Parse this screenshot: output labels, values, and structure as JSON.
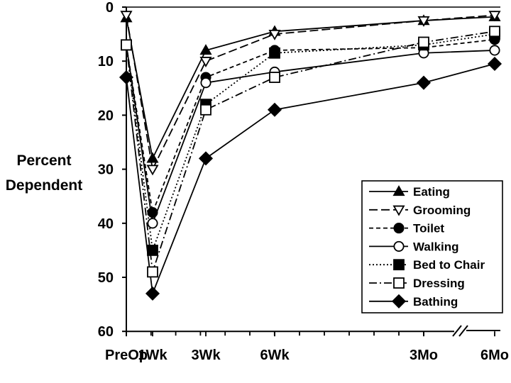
{
  "chart_data": {
    "type": "line",
    "title": "",
    "xlabel": "",
    "ylabel": [
      "Percent",
      "Dependent"
    ],
    "ylim": [
      0,
      60
    ],
    "y_inverted": true,
    "yticks": [
      0,
      10,
      20,
      30,
      40,
      50,
      60
    ],
    "categories": [
      "PreOp",
      "1Wk",
      "3Wk",
      "6Wk",
      "3Mo",
      "6Mo"
    ],
    "x": [
      0,
      1,
      3,
      6,
      12,
      24
    ],
    "axis_break_between": [
      "6Wk",
      "6Mo"
    ],
    "legend_position": "bottom-right",
    "series": [
      {
        "name": "Eating",
        "marker": "triangle-up-filled",
        "dash": "solid",
        "values": [
          2,
          28,
          8,
          4.5,
          2.5,
          1.8
        ]
      },
      {
        "name": "Grooming",
        "marker": "triangle-down-open",
        "dash": "longdash",
        "values": [
          1.5,
          30,
          10,
          5,
          2.5,
          1.5
        ]
      },
      {
        "name": "Toilet",
        "marker": "circle-filled",
        "dash": "dashed",
        "values": [
          7,
          38,
          13,
          8,
          7.5,
          6
        ]
      },
      {
        "name": "Walking",
        "marker": "circle-open",
        "dash": "solid",
        "values": [
          7,
          40,
          14,
          12,
          8.5,
          8
        ]
      },
      {
        "name": "Bed to Chair",
        "marker": "square-filled",
        "dash": "dotted",
        "values": [
          7,
          45,
          18,
          8.5,
          7,
          5
        ]
      },
      {
        "name": "Dressing",
        "marker": "square-open",
        "dash": "dashdot",
        "values": [
          7,
          49,
          19,
          13,
          6.5,
          4.5
        ]
      },
      {
        "name": "Bathing",
        "marker": "diamond-filled",
        "dash": "solid",
        "values": [
          13,
          53,
          28,
          19,
          14,
          10.5
        ]
      }
    ]
  }
}
